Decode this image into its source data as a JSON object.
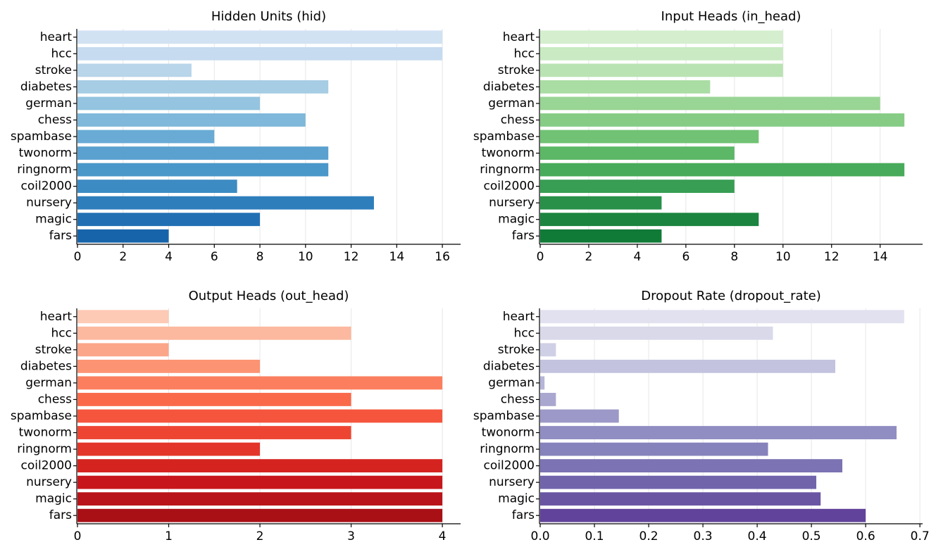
{
  "chart_data": [
    {
      "type": "bar",
      "orientation": "horizontal",
      "title": "Hidden Units (hid)",
      "categories": [
        "heart",
        "hcc",
        "stroke",
        "diabetes",
        "german",
        "chess",
        "spambase",
        "twonorm",
        "ringnorm",
        "coil2000",
        "nursery",
        "magic",
        "fars"
      ],
      "values": [
        16,
        16,
        5,
        11,
        8,
        10,
        6,
        11,
        11,
        7,
        13,
        8,
        4
      ],
      "xlim": [
        0,
        16.8
      ],
      "xticks": [
        0,
        2,
        4,
        6,
        8,
        10,
        12,
        14,
        16
      ],
      "xtick_labels": [
        "0",
        "2",
        "4",
        "6",
        "8",
        "10",
        "12",
        "14",
        "16"
      ],
      "xlabel": "",
      "ylabel": "",
      "grid": "vertical",
      "colors": [
        "#d1e2f3",
        "#c6dbef",
        "#b8d5ea",
        "#a6cde4",
        "#94c4df",
        "#7fb8da",
        "#69abd5",
        "#5ba1cf",
        "#4a97c9",
        "#3c8bc3",
        "#2f7ebc",
        "#2270b3",
        "#1764ab"
      ]
    },
    {
      "type": "bar",
      "orientation": "horizontal",
      "title": "Input Heads (in_head)",
      "categories": [
        "heart",
        "hcc",
        "stroke",
        "diabetes",
        "german",
        "chess",
        "spambase",
        "twonorm",
        "ringnorm",
        "coil2000",
        "nursery",
        "magic",
        "fars"
      ],
      "values": [
        10,
        10,
        10,
        7,
        14,
        15,
        9,
        8,
        15,
        8,
        5,
        9,
        5
      ],
      "xlim": [
        0,
        15.75
      ],
      "xticks": [
        0,
        2,
        4,
        6,
        8,
        10,
        12,
        14
      ],
      "xtick_labels": [
        "0",
        "2",
        "4",
        "6",
        "8",
        "10",
        "12",
        "14"
      ],
      "xlabel": "",
      "ylabel": "",
      "grid": "vertical",
      "colors": [
        "#d4eece",
        "#c9eac2",
        "#bae3b3",
        "#aadda4",
        "#99d594",
        "#86cc85",
        "#71c274",
        "#5cb766",
        "#48ab5b",
        "#379e53",
        "#289049",
        "#1b843f",
        "#107a37"
      ]
    },
    {
      "type": "bar",
      "orientation": "horizontal",
      "title": "Output Heads (out_head)",
      "categories": [
        "heart",
        "hcc",
        "stroke",
        "diabetes",
        "german",
        "chess",
        "spambase",
        "twonorm",
        "ringnorm",
        "coil2000",
        "nursery",
        "magic",
        "fars"
      ],
      "values": [
        1,
        3,
        1,
        2,
        4,
        3,
        4,
        3,
        2,
        4,
        4,
        4,
        4
      ],
      "xlim": [
        0,
        4.2
      ],
      "xticks": [
        0,
        1,
        2,
        3,
        4
      ],
      "xtick_labels": [
        "0",
        "1",
        "2",
        "3",
        "4"
      ],
      "xlabel": "",
      "ylabel": "",
      "grid": "vertical",
      "colors": [
        "#fdcab5",
        "#fcb99f",
        "#fca689",
        "#fc9373",
        "#fb7f5f",
        "#fa6a4a",
        "#f5553d",
        "#ee4532",
        "#e33529",
        "#d52420",
        "#c7171c",
        "#b91419",
        "#a91016"
      ]
    },
    {
      "type": "bar",
      "orientation": "horizontal",
      "title": "Dropout Rate (dropout_rate)",
      "categories": [
        "heart",
        "hcc",
        "stroke",
        "diabetes",
        "german",
        "chess",
        "spambase",
        "twonorm",
        "ringnorm",
        "coil2000",
        "nursery",
        "magic",
        "fars"
      ],
      "values": [
        0.671,
        0.429,
        0.029,
        0.544,
        0.008,
        0.029,
        0.145,
        0.657,
        0.42,
        0.557,
        0.509,
        0.517,
        0.6
      ],
      "xlim": [
        0,
        0.705
      ],
      "xticks": [
        0.0,
        0.1,
        0.2,
        0.3,
        0.4,
        0.5,
        0.6,
        0.7
      ],
      "xtick_labels": [
        "0.0",
        "0.1",
        "0.2",
        "0.3",
        "0.4",
        "0.5",
        "0.6",
        "0.7"
      ],
      "xlabel": "",
      "ylabel": "",
      "grid": "vertical",
      "colors": [
        "#e2e1ef",
        "#d9d9ea",
        "#cfcfe5",
        "#c3c3df",
        "#b6b5d8",
        "#a9a7cf",
        "#9c99c8",
        "#908dc2",
        "#8682bc",
        "#7b73b3",
        "#7264ab",
        "#6a55a3",
        "#62439b"
      ]
    }
  ]
}
